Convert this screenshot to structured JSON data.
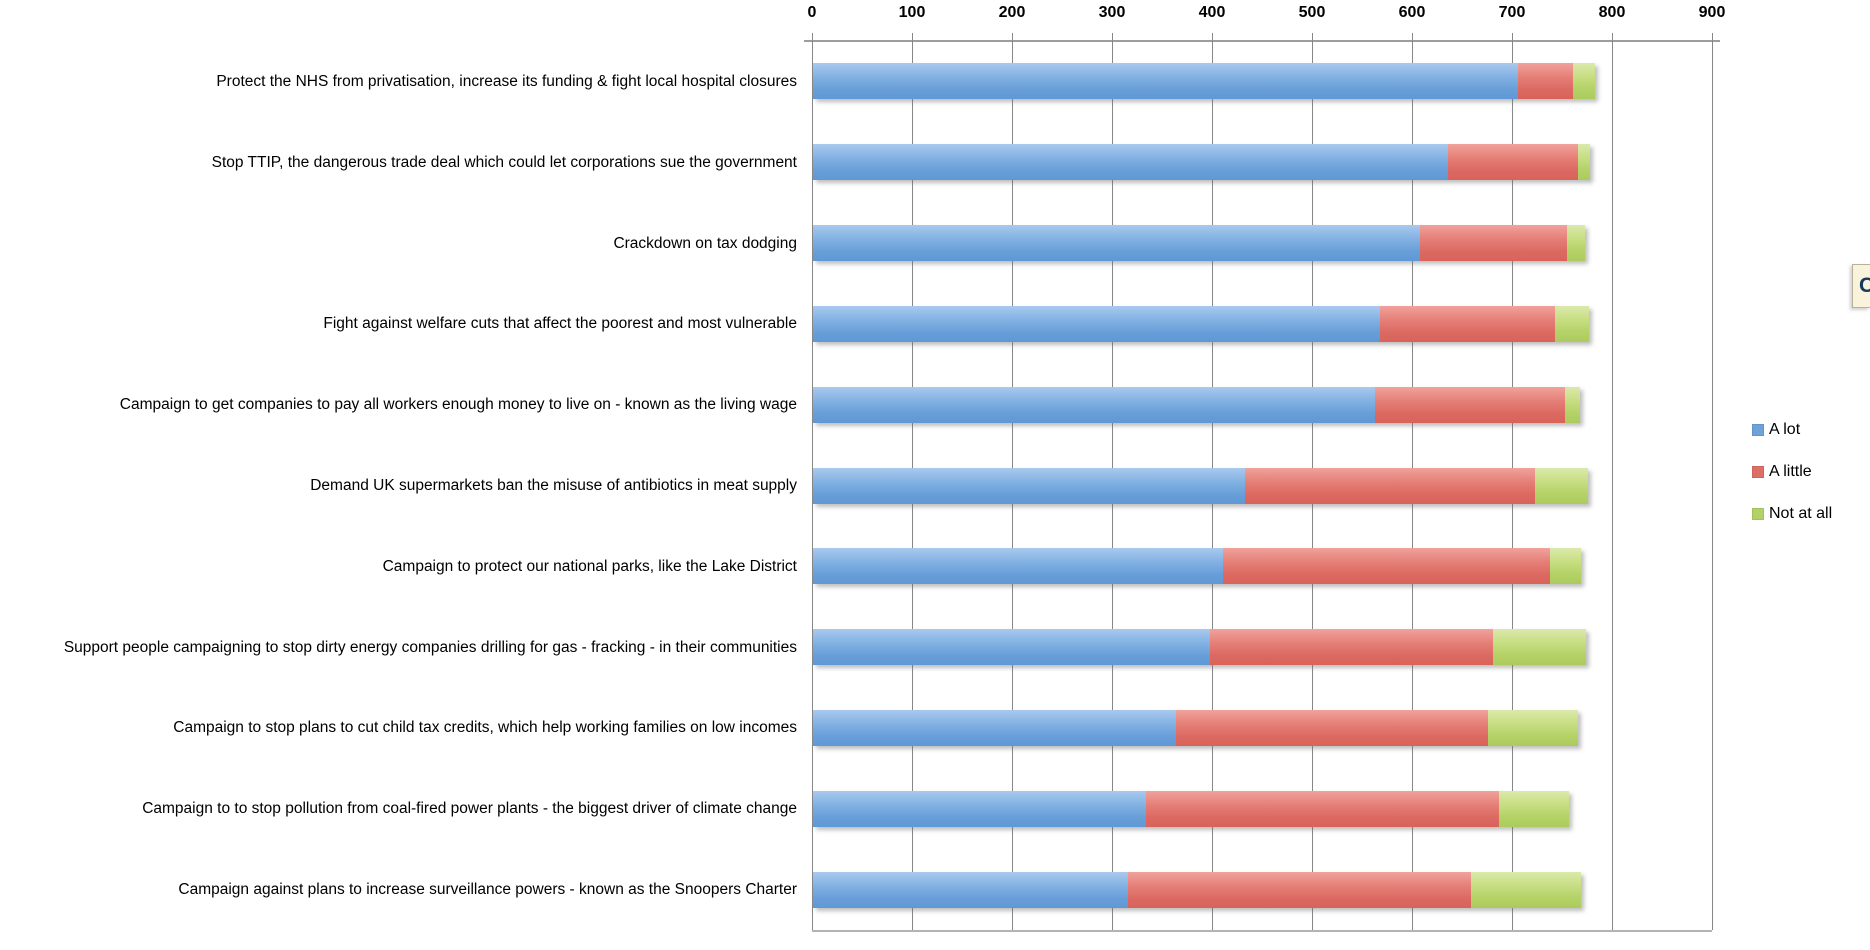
{
  "note": {
    "text": "C"
  },
  "chart_data": {
    "type": "bar",
    "orientation": "horizontal",
    "stacked": true,
    "title": "",
    "categories": [
      "Protect the NHS from privatisation, increase its funding & fight local hospital closures",
      "Stop TTIP, the dangerous trade deal which could let corporations sue the government",
      "Crackdown on tax dodging",
      "Fight against welfare cuts that affect the poorest and most vulnerable",
      "Campaign to get companies to pay all workers enough money to live on - known as the living wage",
      "Demand UK supermarkets ban the misuse of antibiotics in meat supply",
      "Campaign to protect our national parks, like the Lake District",
      "Support people campaigning to stop dirty energy companies drilling for gas - fracking - in their communities",
      "Campaign to stop plans to cut child tax credits, which help working families on low incomes",
      "Campaign to to stop pollution from coal-fired power plants - the biggest driver of climate change",
      "Campaign against plans to increase surveillance powers - known as the Snoopers Charter"
    ],
    "series": [
      {
        "name": "A lot",
        "color": "#6ea2d8",
        "values": [
          705,
          635,
          607,
          567,
          562,
          432,
          410,
          397,
          363,
          333,
          315
        ]
      },
      {
        "name": "A little",
        "color": "#dd6f67",
        "values": [
          55,
          130,
          147,
          175,
          190,
          290,
          327,
          283,
          312,
          353,
          343
        ]
      },
      {
        "name": "Not at all",
        "color": "#b3d166",
        "values": [
          22,
          12,
          18,
          34,
          15,
          53,
          31,
          93,
          90,
          70,
          110
        ]
      }
    ],
    "x_axis": {
      "position": "top",
      "min": 0,
      "max": 900,
      "step": 100,
      "tick_labels": [
        "0",
        "100",
        "200",
        "300",
        "400",
        "500",
        "600",
        "700",
        "800",
        "900"
      ]
    },
    "legend": {
      "position": "right",
      "entries": [
        "A lot",
        "A little",
        "Not at all"
      ]
    },
    "grid": true
  }
}
